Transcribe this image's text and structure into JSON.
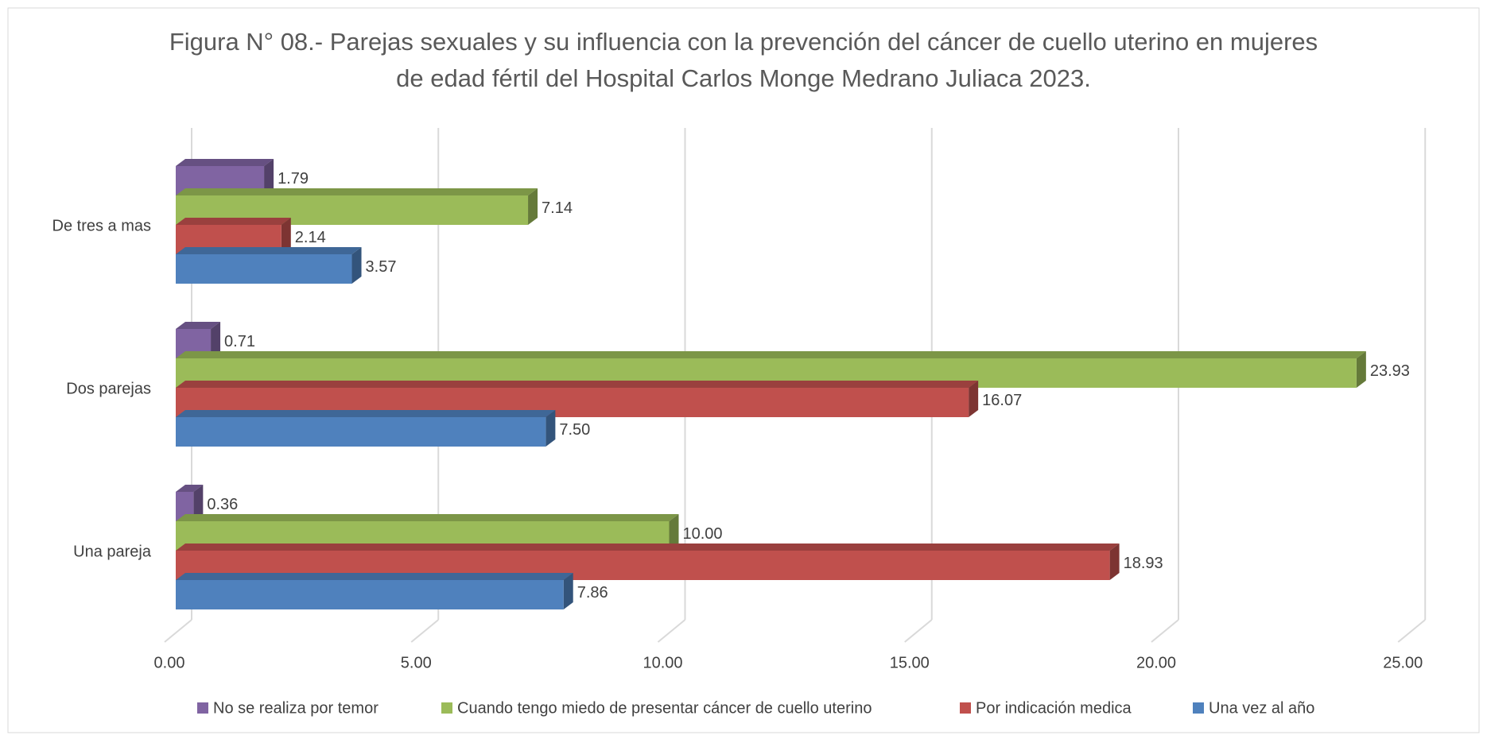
{
  "chart_data": {
    "type": "bar3d",
    "title": "Figura N° 08.- Parejas sexuales y su influencia con la prevención del cáncer de cuello uterino en mujeres de edad fértil del Hospital Carlos Monge Medrano Juliaca 2023.",
    "categories": [
      "De tres a mas",
      "Dos parejas",
      "Una pareja"
    ],
    "series": [
      {
        "name": "No se realiza por temor",
        "color": "#8064a2",
        "values": [
          1.79,
          0.71,
          0.36
        ],
        "value_labels": [
          "1.79",
          "0.71",
          "0.36"
        ]
      },
      {
        "name": "Cuando tengo miedo de presentar cáncer de cuello uterino",
        "color": "#9bbb59",
        "values": [
          7.14,
          23.93,
          10.0
        ],
        "value_labels": [
          "7.14",
          "23.93",
          "10.00"
        ]
      },
      {
        "name": "Por indicación medica",
        "color": "#c0504d",
        "values": [
          2.14,
          16.07,
          18.93
        ],
        "value_labels": [
          "2.14",
          "16.07",
          "18.93"
        ]
      },
      {
        "name": "Una vez al año",
        "color": "#4f81bd",
        "values": [
          3.57,
          7.5,
          7.86
        ],
        "value_labels": [
          "3.57",
          "7.50",
          "7.86"
        ]
      }
    ],
    "xlim": [
      0,
      25
    ],
    "xticks": [
      {
        "value": 0,
        "label": "0.00"
      },
      {
        "value": 5,
        "label": "5.00"
      },
      {
        "value": 10,
        "label": "10.00"
      },
      {
        "value": 15,
        "label": "15.00"
      },
      {
        "value": 20,
        "label": "20.00"
      },
      {
        "value": 25,
        "label": "25.00"
      }
    ],
    "grid": true,
    "legend": "bottom"
  }
}
